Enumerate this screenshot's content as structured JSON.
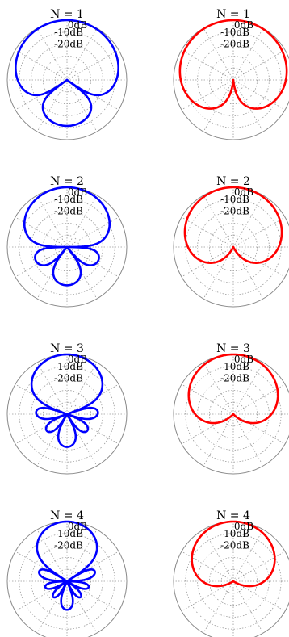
{
  "chart_data": {
    "type": "polar",
    "grid": true,
    "db_labels": [
      "0dB",
      "-10dB",
      "-20dB"
    ],
    "panels": [
      {
        "title": "N = 1",
        "order": 1,
        "color": "#0000ff",
        "variant": "max-re"
      },
      {
        "title": "N = 1",
        "order": 1,
        "color": "#ff0000",
        "variant": "in-phase"
      },
      {
        "title": "N = 2",
        "order": 2,
        "color": "#0000ff",
        "variant": "max-re"
      },
      {
        "title": "N = 2",
        "order": 2,
        "color": "#ff0000",
        "variant": "in-phase"
      },
      {
        "title": "N = 3",
        "order": 3,
        "color": "#0000ff",
        "variant": "max-re"
      },
      {
        "title": "N = 3",
        "order": 3,
        "color": "#ff0000",
        "variant": "in-phase"
      },
      {
        "title": "N = 4",
        "order": 4,
        "color": "#0000ff",
        "variant": "max-re"
      },
      {
        "title": "N = 4",
        "order": 4,
        "color": "#ff0000",
        "variant": "in-phase"
      }
    ]
  }
}
